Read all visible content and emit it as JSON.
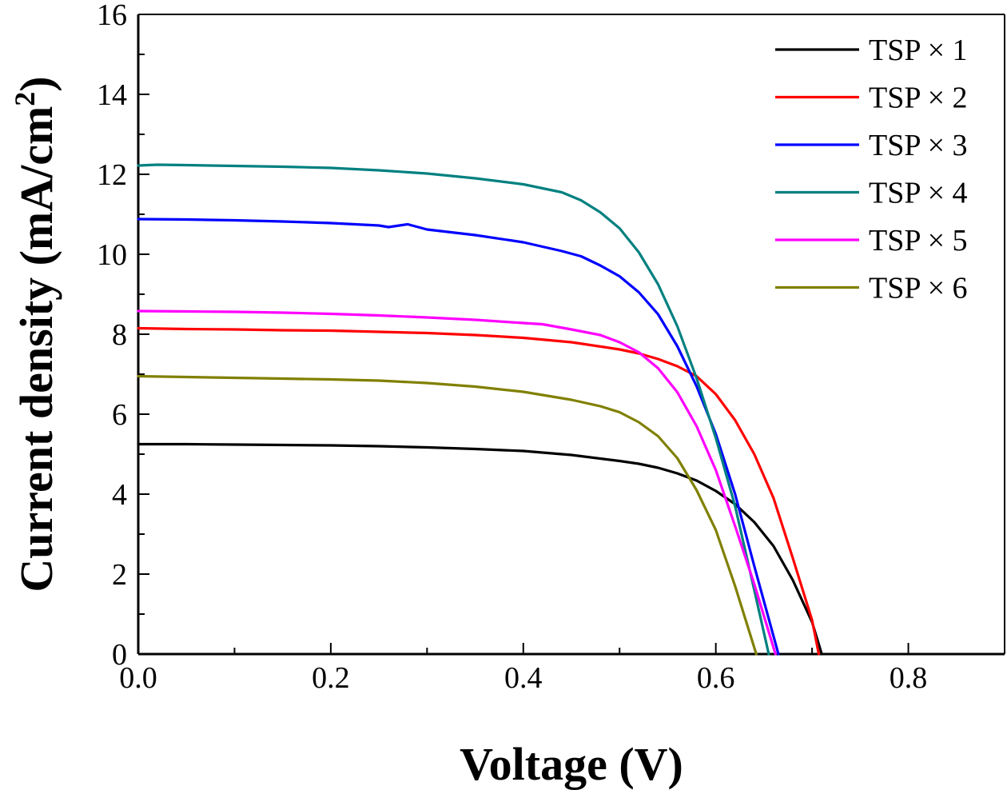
{
  "chart_data": {
    "type": "line",
    "title": "",
    "xlabel": "Voltage (V)",
    "ylabel": "Current density (mA/cm",
    "ylabel_sup": "2",
    "ylabel_close": ")",
    "xlim": [
      0.0,
      0.9
    ],
    "ylim": [
      0,
      16
    ],
    "x_ticks": [
      0.0,
      0.2,
      0.4,
      0.6,
      0.8
    ],
    "x_tick_labels": [
      "0.0",
      "0.2",
      "0.4",
      "0.6",
      "0.8"
    ],
    "y_ticks": [
      0,
      2,
      4,
      6,
      8,
      10,
      12,
      14,
      16
    ],
    "y_tick_labels": [
      "0",
      "2",
      "4",
      "6",
      "8",
      "10",
      "12",
      "14",
      "16"
    ],
    "grid": false,
    "legend_position": "top-right",
    "series": [
      {
        "name": "TSP × 1",
        "color": "#000000",
        "x": [
          0.0,
          0.05,
          0.1,
          0.15,
          0.2,
          0.25,
          0.3,
          0.35,
          0.4,
          0.45,
          0.5,
          0.52,
          0.54,
          0.56,
          0.58,
          0.6,
          0.62,
          0.64,
          0.66,
          0.68,
          0.7,
          0.71
        ],
        "y": [
          5.25,
          5.25,
          5.24,
          5.23,
          5.22,
          5.2,
          5.17,
          5.13,
          5.08,
          4.98,
          4.83,
          4.76,
          4.66,
          4.52,
          4.34,
          4.08,
          3.75,
          3.3,
          2.7,
          1.85,
          0.8,
          0.0
        ]
      },
      {
        "name": "TSP × 2",
        "color": "#ff0000",
        "x": [
          0.0,
          0.05,
          0.1,
          0.15,
          0.2,
          0.25,
          0.3,
          0.35,
          0.4,
          0.45,
          0.5,
          0.52,
          0.54,
          0.56,
          0.58,
          0.6,
          0.62,
          0.64,
          0.66,
          0.68,
          0.7,
          0.707
        ],
        "y": [
          8.15,
          8.13,
          8.12,
          8.1,
          8.09,
          8.06,
          8.03,
          7.98,
          7.91,
          7.8,
          7.62,
          7.52,
          7.38,
          7.2,
          6.95,
          6.5,
          5.85,
          5.0,
          3.9,
          2.4,
          0.85,
          0.0
        ]
      },
      {
        "name": "TSP × 3",
        "color": "#0000ff",
        "x": [
          0.0,
          0.05,
          0.1,
          0.15,
          0.2,
          0.25,
          0.26,
          0.28,
          0.3,
          0.35,
          0.4,
          0.44,
          0.46,
          0.48,
          0.5,
          0.52,
          0.54,
          0.56,
          0.58,
          0.6,
          0.62,
          0.64,
          0.665
        ],
        "y": [
          10.88,
          10.87,
          10.85,
          10.82,
          10.78,
          10.72,
          10.68,
          10.75,
          10.62,
          10.48,
          10.3,
          10.08,
          9.95,
          9.72,
          9.45,
          9.05,
          8.5,
          7.7,
          6.7,
          5.5,
          4.0,
          2.2,
          0.0
        ]
      },
      {
        "name": "TSP × 4",
        "color": "#008080",
        "x": [
          0.0,
          0.02,
          0.05,
          0.1,
          0.15,
          0.2,
          0.25,
          0.3,
          0.35,
          0.4,
          0.44,
          0.46,
          0.48,
          0.5,
          0.52,
          0.54,
          0.56,
          0.58,
          0.6,
          0.62,
          0.64,
          0.655
        ],
        "y": [
          12.22,
          12.24,
          12.23,
          12.21,
          12.19,
          12.16,
          12.1,
          12.02,
          11.9,
          11.75,
          11.55,
          11.35,
          11.05,
          10.65,
          10.05,
          9.25,
          8.2,
          6.9,
          5.4,
          3.7,
          1.6,
          0.0
        ]
      },
      {
        "name": "TSP × 5",
        "color": "#ff00ff",
        "x": [
          0.0,
          0.05,
          0.1,
          0.15,
          0.2,
          0.25,
          0.3,
          0.35,
          0.4,
          0.42,
          0.45,
          0.48,
          0.5,
          0.52,
          0.54,
          0.56,
          0.58,
          0.6,
          0.62,
          0.64,
          0.662
        ],
        "y": [
          8.58,
          8.57,
          8.56,
          8.54,
          8.51,
          8.47,
          8.42,
          8.36,
          8.28,
          8.25,
          8.12,
          7.98,
          7.8,
          7.55,
          7.15,
          6.55,
          5.7,
          4.6,
          3.2,
          1.75,
          0.0
        ]
      },
      {
        "name": "TSP × 6",
        "color": "#808000",
        "x": [
          0.0,
          0.05,
          0.1,
          0.15,
          0.2,
          0.25,
          0.3,
          0.35,
          0.4,
          0.45,
          0.48,
          0.5,
          0.52,
          0.54,
          0.56,
          0.58,
          0.6,
          0.62,
          0.642
        ],
        "y": [
          6.95,
          6.93,
          6.91,
          6.89,
          6.87,
          6.84,
          6.78,
          6.69,
          6.56,
          6.36,
          6.2,
          6.05,
          5.8,
          5.45,
          4.9,
          4.1,
          3.1,
          1.7,
          0.0
        ]
      }
    ]
  }
}
